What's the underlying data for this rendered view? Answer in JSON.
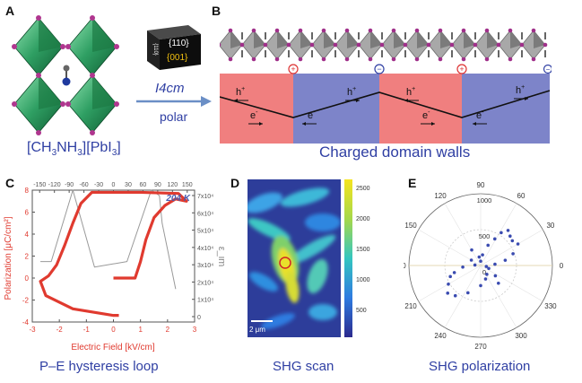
{
  "panels": {
    "A": {
      "letter": "A",
      "crystal_face_top": "{110}",
      "crystal_face_side": "{110}",
      "crystal_face_front": "{001}",
      "space_group": "I4cm",
      "arrow_label": "polar",
      "formula_prefix": "[CH",
      "formula_sub1": "3",
      "formula_mid": "NH",
      "formula_sub2": "3",
      "formula_mid2": "][PbI",
      "formula_sub3": "3",
      "formula_suffix": "]"
    },
    "B": {
      "letter": "B",
      "caption": "Charged domain walls",
      "hole_label": "h",
      "hole_sup": "+",
      "electron_label": "e",
      "electron_sup": "-",
      "wall_signs": [
        "+",
        "−",
        "+",
        "−"
      ],
      "colors": {
        "red_domain": "#f07f7f",
        "blue_domain": "#7d84c9"
      }
    },
    "C": {
      "letter": "C",
      "caption": "P–E hysteresis loop",
      "temperature": "204 K",
      "xlabel": "Electric Field [kV/cm]",
      "ylabel": "Polarization [μC/cm²]",
      "y2label": "ε_im",
      "top_ticks": [
        "-150",
        "-120",
        "-90",
        "-60",
        "-30",
        "0",
        "30",
        "60",
        "90",
        "120",
        "150"
      ],
      "bottom_ticks": [
        "-3",
        "-2",
        "-1",
        "0",
        "1",
        "2",
        "3"
      ],
      "left_ticks": [
        "8",
        "6",
        "4",
        "2",
        "0",
        "-2",
        "-4"
      ],
      "right_ticks": [
        "7x10⁴",
        "6x10⁴",
        "5x10⁴",
        "4x10⁴",
        "3x10⁴",
        "2x10⁴",
        "1x10⁴",
        "0"
      ]
    },
    "D": {
      "letter": "D",
      "caption": "SHG scan",
      "scale_bar": "2 μm",
      "colorbar_ticks": [
        "2500",
        "2000",
        "1500",
        "1000",
        "500"
      ]
    },
    "E": {
      "letter": "E",
      "caption": "SHG polarization",
      "angle_labels": [
        "90",
        "60",
        "30",
        "0",
        "330",
        "300",
        "270",
        "240",
        "210",
        "180",
        "150",
        "120"
      ],
      "radial_labels": [
        "1000",
        "500",
        "0"
      ]
    }
  },
  "chart_data": [
    {
      "type": "line",
      "title": "",
      "xlabel": "Electric Field [kV/cm]",
      "ylabel": "Polarization [μC/cm²]",
      "xlim": [
        -3,
        3
      ],
      "ylim": [
        -4,
        8
      ],
      "series": [
        {
          "name": "",
          "color": "#e03a2f",
          "x": [
            0.0,
            0.5,
            0.8,
            1.0,
            1.2,
            1.5,
            1.9,
            2.3,
            2.7,
            2.4,
            1.0,
            0.0,
            -0.8,
            -1.2,
            -1.5,
            -1.8,
            -2.1,
            -2.4,
            -2.7,
            -2.5,
            -1.5,
            0.0,
            0.2
          ],
          "y": [
            0.0,
            0.0,
            0.0,
            1.5,
            3.5,
            5.5,
            6.6,
            7.2,
            7.0,
            7.7,
            7.8,
            7.8,
            7.8,
            6.8,
            5.0,
            3.0,
            1.2,
            0.2,
            -0.3,
            -1.6,
            -2.8,
            -3.4,
            -3.4
          ]
        },
        {
          "name": "",
          "color": "#999999",
          "x": [
            -2.7,
            -2.3,
            -1.5,
            -0.7,
            0.5,
            1.4,
            1.7,
            1.8,
            2.3
          ],
          "y": [
            1.5,
            1.5,
            8.0,
            1.0,
            1.5,
            8.0,
            7.5,
            5.0,
            -1.0
          ]
        }
      ]
    },
    {
      "type": "heatmap",
      "title": "",
      "colorbar_range": [
        300,
        2600
      ],
      "colorbar_ticks": [
        500,
        1000,
        1500,
        2000,
        2500
      ]
    },
    {
      "type": "scatter",
      "title": "",
      "polar": true,
      "theta_deg": [
        5,
        12,
        20,
        30,
        38,
        45,
        52,
        58,
        62,
        70,
        80,
        90,
        100,
        120,
        150,
        175,
        185,
        195,
        200,
        210,
        220,
        230,
        245,
        270,
        290,
        305,
        315,
        325,
        340,
        350
      ],
      "r": [
        200,
        350,
        480,
        600,
        560,
        580,
        620,
        540,
        420,
        300,
        150,
        60,
        120,
        250,
        150,
        80,
        250,
        380,
        450,
        520,
        600,
        550,
        420,
        280,
        200,
        150,
        350,
        250,
        120,
        80
      ],
      "rlim": [
        0,
        1000
      ]
    }
  ]
}
